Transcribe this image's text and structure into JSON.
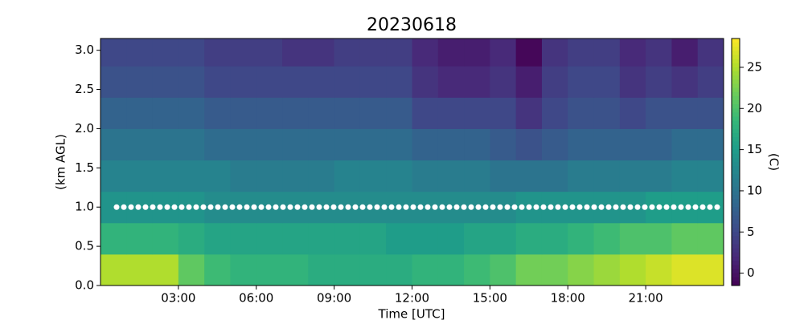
{
  "chart_data": {
    "type": "heatmap",
    "title": "20230618",
    "x_label": "Time [UTC]",
    "y_label": "(km AGL)",
    "colorbar_label": "(C)",
    "colormap": "viridis",
    "x_bins": [
      0,
      1,
      2,
      3,
      4,
      5,
      6,
      7,
      8,
      9,
      10,
      11,
      12,
      13,
      14,
      15,
      16,
      17,
      18,
      19,
      20,
      21,
      22,
      23,
      24
    ],
    "y_bins": [
      0,
      0.4,
      0.8,
      1.2,
      1.6,
      2.0,
      2.4,
      2.8,
      3.15
    ],
    "values": [
      [
        25,
        25,
        25,
        21,
        19,
        18,
        18,
        18,
        17,
        17,
        17,
        17,
        18,
        18,
        19,
        20,
        22,
        22,
        23,
        24,
        25,
        26,
        27,
        27
      ],
      [
        18,
        18,
        18,
        17,
        16,
        16,
        16,
        16,
        16,
        16,
        16,
        15,
        15,
        15,
        16,
        16,
        17,
        17,
        18,
        19,
        20,
        20,
        21,
        21
      ],
      [
        14,
        14,
        14,
        14,
        13,
        13,
        13,
        13,
        13,
        13,
        13,
        13,
        13,
        13,
        13,
        13,
        14,
        14,
        14,
        14,
        14,
        15,
        15,
        15
      ],
      [
        12,
        12,
        12,
        12,
        12,
        11,
        11,
        11,
        11,
        12,
        12,
        12,
        11,
        11,
        11,
        10,
        10,
        10,
        11,
        11,
        11,
        11,
        12,
        12
      ],
      [
        10,
        10,
        10,
        10,
        9,
        9,
        9,
        9,
        9,
        9,
        9,
        9,
        8,
        8,
        8,
        7,
        6,
        7,
        8,
        8,
        8,
        8,
        9,
        9
      ],
      [
        8,
        8,
        8,
        8,
        7,
        7,
        7,
        7,
        7,
        7,
        7,
        7,
        5,
        5,
        5,
        5,
        3,
        5,
        6,
        6,
        5,
        6,
        6,
        6
      ],
      [
        6,
        6,
        6,
        6,
        5,
        5,
        5,
        5,
        5,
        5,
        5,
        5,
        3,
        2,
        2,
        3,
        1,
        4,
        5,
        5,
        3,
        4,
        3,
        4
      ],
      [
        5,
        5,
        5,
        5,
        4,
        4,
        4,
        3,
        3,
        4,
        4,
        4,
        2,
        1,
        1,
        2,
        -1,
        3,
        4,
        4,
        2,
        3,
        1,
        3
      ]
    ],
    "xlim": [
      0,
      24
    ],
    "ylim": [
      0,
      3.15
    ],
    "clim": [
      -1.5,
      28.5
    ],
    "xticks": [
      {
        "value": 3,
        "label": "03:00"
      },
      {
        "value": 6,
        "label": "06:00"
      },
      {
        "value": 9,
        "label": "09:00"
      },
      {
        "value": 12,
        "label": "12:00"
      },
      {
        "value": 15,
        "label": "15:00"
      },
      {
        "value": 18,
        "label": "18:00"
      },
      {
        "value": 21,
        "label": "21:00"
      }
    ],
    "yticks": [
      {
        "value": 0,
        "label": "0.0"
      },
      {
        "value": 0.5,
        "label": "0.5"
      },
      {
        "value": 1,
        "label": "1.0"
      },
      {
        "value": 1.5,
        "label": "1.5"
      },
      {
        "value": 2,
        "label": "2.0"
      },
      {
        "value": 2.5,
        "label": "2.5"
      },
      {
        "value": 3,
        "label": "3.0"
      }
    ],
    "cticks": [
      0,
      5,
      10,
      15,
      20,
      25
    ],
    "hline": 1.0,
    "hline_color": "#ffffff"
  }
}
